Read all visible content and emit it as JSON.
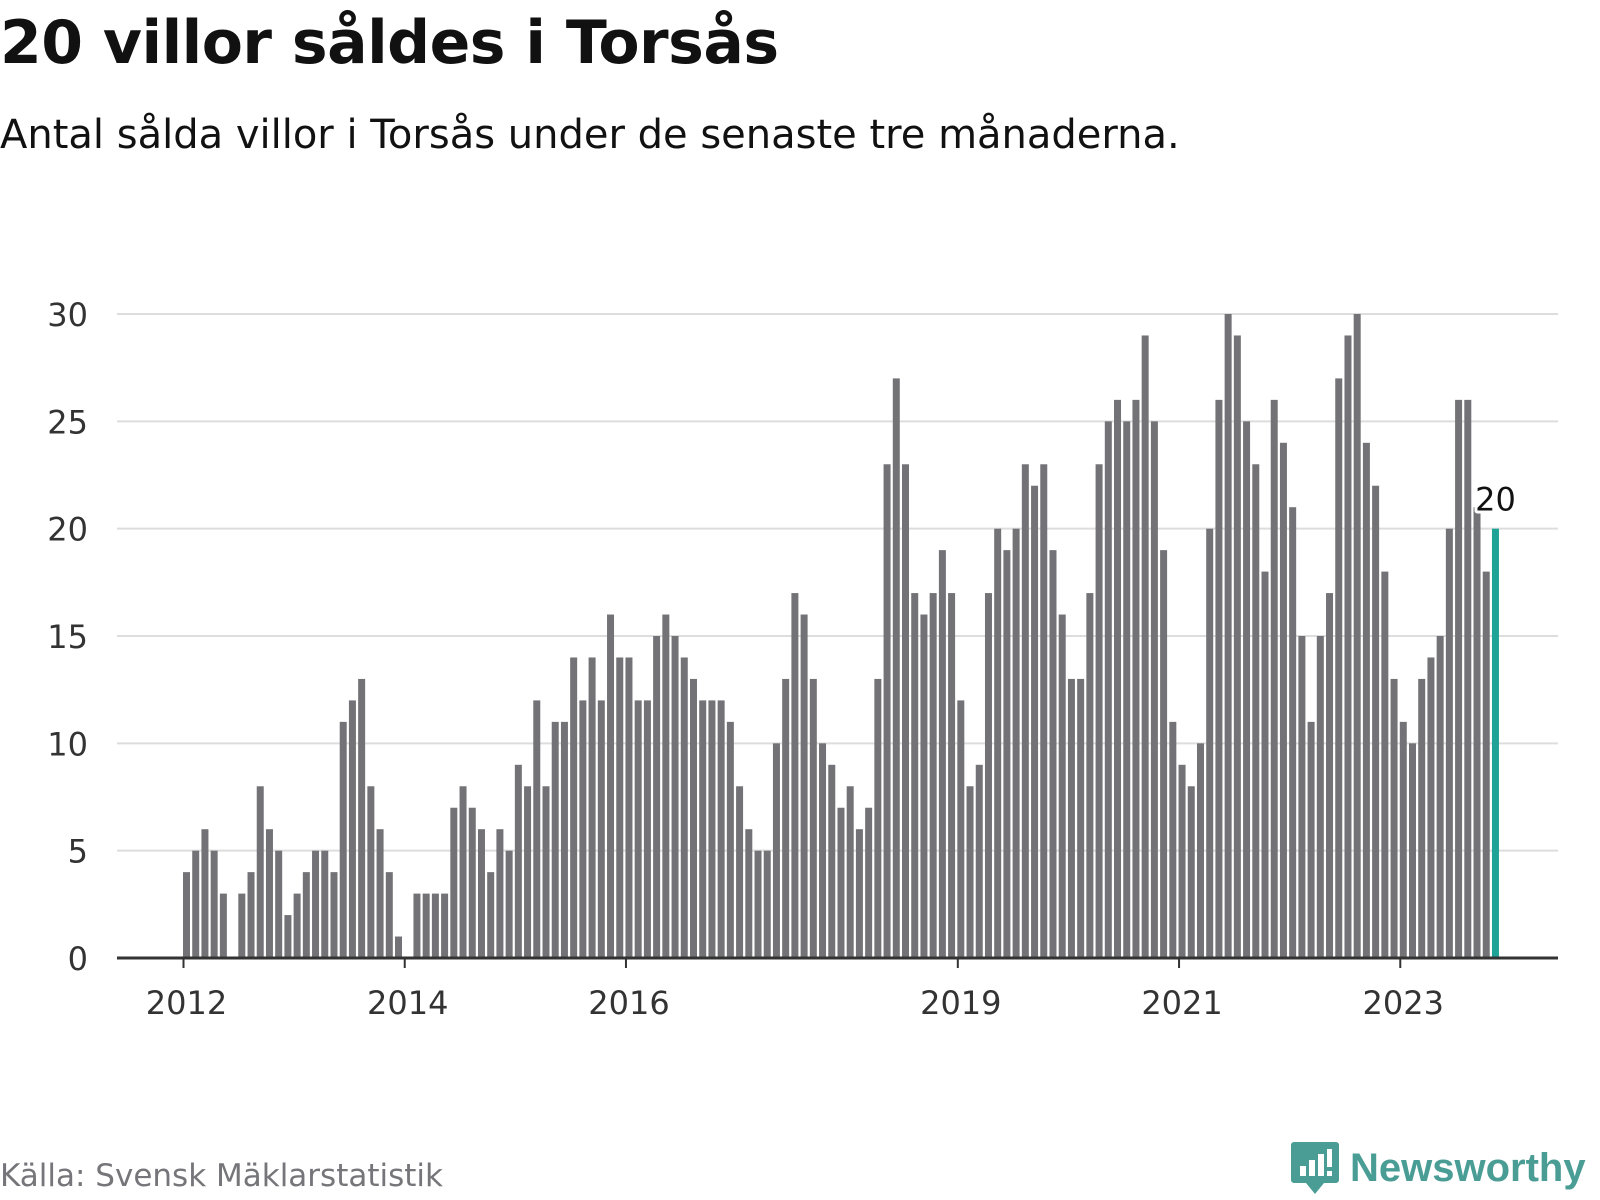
{
  "header": {
    "title": "20 villor såldes i Torsås",
    "subtitle": "Antal sålda villor i Torsås under de senaste tre månaderna."
  },
  "footer": {
    "source": "Källa: Svensk Mäklarstatistik",
    "brand": "Newsworthy"
  },
  "colors": {
    "bar": "#737276",
    "highlight": "#1fa396",
    "grid": "#dddddd",
    "axis": "#333333",
    "text": "#111111",
    "muted": "#76757a",
    "brand": "#4a9d95"
  },
  "icons": {
    "brand_logo": "bar-chart-speech-bubble-icon"
  },
  "chart_data": {
    "type": "bar",
    "title": "20 villor såldes i Torsås",
    "subtitle": "Antal sålda villor i Torsås under de senaste tre månaderna.",
    "xlabel": "",
    "ylabel": "",
    "ylim": [
      0,
      30
    ],
    "yticks": [
      0,
      5,
      10,
      15,
      20,
      25,
      30
    ],
    "grid": true,
    "legend": "none",
    "x_start": "2012-01",
    "x_tick_labels": [
      {
        "label": "2012",
        "index": 0
      },
      {
        "label": "2014",
        "index": 24
      },
      {
        "label": "2016",
        "index": 48
      },
      {
        "label": "2019",
        "index": 84
      },
      {
        "label": "2021",
        "index": 108
      },
      {
        "label": "2023",
        "index": 132
      }
    ],
    "values": [
      4,
      5,
      6,
      5,
      3,
      0,
      3,
      4,
      8,
      6,
      5,
      2,
      3,
      4,
      5,
      5,
      4,
      11,
      12,
      13,
      8,
      6,
      4,
      1,
      0,
      3,
      3,
      3,
      3,
      7,
      8,
      7,
      6,
      4,
      6,
      5,
      9,
      8,
      12,
      8,
      11,
      11,
      14,
      12,
      14,
      12,
      16,
      14,
      14,
      12,
      12,
      15,
      16,
      15,
      14,
      13,
      12,
      12,
      12,
      11,
      8,
      6,
      5,
      5,
      10,
      13,
      17,
      16,
      13,
      10,
      9,
      7,
      8,
      6,
      7,
      13,
      23,
      27,
      23,
      17,
      16,
      17,
      19,
      17,
      12,
      8,
      9,
      17,
      20,
      19,
      20,
      23,
      22,
      23,
      19,
      16,
      13,
      13,
      17,
      23,
      25,
      26,
      25,
      26,
      29,
      25,
      19,
      11,
      9,
      8,
      10,
      20,
      26,
      30,
      29,
      25,
      23,
      18,
      26,
      24,
      21,
      15,
      11,
      15,
      17,
      27,
      29,
      30,
      24,
      22,
      18,
      13,
      11,
      10,
      13,
      14,
      15,
      20,
      26,
      26,
      21,
      18,
      20
    ],
    "highlight_index": 142,
    "highlight_label": "20"
  }
}
